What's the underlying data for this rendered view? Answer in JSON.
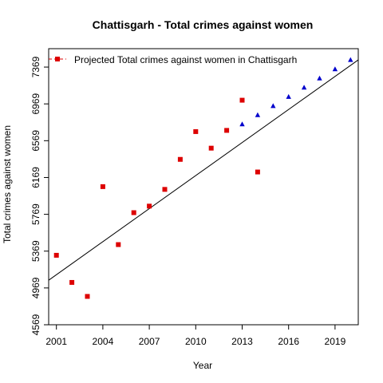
{
  "chart_data": {
    "type": "scatter",
    "title": "Chattisgarh  -  Total crimes against women",
    "xlabel": "Year",
    "ylabel": "Total crimes against women",
    "xlim": [
      2000.5,
      2020.5
    ],
    "ylim": [
      4569,
      7569
    ],
    "xticks": [
      2001,
      2004,
      2007,
      2010,
      2013,
      2016,
      2019
    ],
    "yticks": [
      4569,
      4969,
      5369,
      5769,
      6169,
      6569,
      6969,
      7369
    ],
    "grid": false,
    "legend": {
      "position": "top-left",
      "entries": [
        "Projected  Total crimes against women  in  Chattisgarh"
      ]
    },
    "series": [
      {
        "marker": "square",
        "color": "#dd0000",
        "x": [
          2001,
          2002,
          2003,
          2004,
          2005,
          2006,
          2007,
          2008,
          2009,
          2010,
          2011,
          2012,
          2013,
          2014
        ],
        "y": [
          5324,
          5029,
          4877,
          6070,
          5440,
          5787,
          5858,
          6040,
          6366,
          6668,
          6488,
          6681,
          7009,
          6229
        ]
      },
      {
        "name": "Projected  Total crimes against women  in  Chattisgarh",
        "marker": "triangle",
        "color": "#0000cc",
        "x": [
          2013,
          2014,
          2015,
          2016,
          2017,
          2018,
          2019,
          2020
        ],
        "y": [
          6747,
          6847,
          6946,
          7046,
          7146,
          7246,
          7346,
          7446
        ]
      },
      {
        "name": "trend",
        "type": "line",
        "color": "#000000",
        "x": [
          2000.5,
          2020.5
        ],
        "y": [
          5053,
          7447
        ]
      }
    ]
  }
}
